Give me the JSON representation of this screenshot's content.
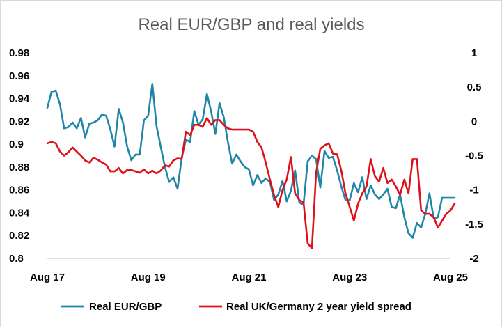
{
  "chart_data": {
    "type": "line",
    "title": "Real EUR/GBP and real yields",
    "x_tick_labels": [
      "Aug 17",
      "Aug 19",
      "Aug 21",
      "Aug 23",
      "Aug 25"
    ],
    "x_range": [
      "Aug 17",
      "Aug 25"
    ],
    "y_left": {
      "range": [
        0.8,
        0.98
      ],
      "ticks": [
        "0.98",
        "0.96",
        "0.94",
        "0.92",
        "0.9",
        "0.88",
        "0.86",
        "0.84",
        "0.82",
        "0.8"
      ]
    },
    "y_right": {
      "range": [
        -2,
        1
      ],
      "ticks": [
        "1",
        "0.5",
        "0",
        "-0.5",
        "-1",
        "-1.5",
        "-2"
      ]
    },
    "grid": false,
    "legend_position": "bottom",
    "series": [
      {
        "name": "Real EUR/GBP",
        "axis": "left",
        "color": "#1f86a8",
        "x_months_from_start": [
          0,
          1,
          2,
          3,
          4,
          5,
          6,
          7,
          8,
          9,
          10,
          11,
          12,
          13,
          14,
          15,
          16,
          17,
          18,
          19,
          20,
          21,
          22,
          23,
          24,
          25,
          26,
          27,
          28,
          29,
          30,
          31,
          32,
          33,
          34,
          35,
          36,
          37,
          38,
          39,
          40,
          41,
          42,
          43,
          44,
          45,
          46,
          47,
          48,
          49,
          50,
          51,
          52,
          53,
          54,
          55,
          56,
          57,
          58,
          59,
          60,
          61,
          62,
          63,
          64,
          65,
          66,
          67,
          68,
          69,
          70,
          71,
          72,
          73,
          74,
          75,
          76,
          77,
          78,
          79,
          80,
          81,
          82,
          83,
          84,
          85,
          86,
          87,
          88,
          89,
          90,
          91,
          92,
          93,
          94,
          95,
          96,
          97
        ],
        "values": [
          0.932,
          0.946,
          0.947,
          0.935,
          0.914,
          0.915,
          0.919,
          0.914,
          0.923,
          0.906,
          0.918,
          0.919,
          0.921,
          0.926,
          0.925,
          0.913,
          0.898,
          0.931,
          0.919,
          0.898,
          0.886,
          0.891,
          0.891,
          0.921,
          0.925,
          0.953,
          0.916,
          0.898,
          0.88,
          0.867,
          0.871,
          0.861,
          0.888,
          0.904,
          0.902,
          0.929,
          0.917,
          0.922,
          0.944,
          0.929,
          0.909,
          0.936,
          0.924,
          0.902,
          0.883,
          0.891,
          0.885,
          0.88,
          0.878,
          0.864,
          0.873,
          0.866,
          0.87,
          0.867,
          0.851,
          0.856,
          0.868,
          0.85,
          0.859,
          0.877,
          0.849,
          0.847,
          0.885,
          0.89,
          0.887,
          0.862,
          0.894,
          0.888,
          0.889,
          0.877,
          0.863,
          0.851,
          0.851,
          0.866,
          0.858,
          0.871,
          0.852,
          0.864,
          0.856,
          0.852,
          0.856,
          0.861,
          0.845,
          0.844,
          0.856,
          0.836,
          0.822,
          0.818,
          0.831,
          0.827,
          0.839,
          0.857,
          0.835,
          0.836,
          0.853,
          0.853,
          0.853,
          0.853
        ]
      },
      {
        "name": "Real UK/Germany 2 year yield spread",
        "axis": "right",
        "color": "#e0101b",
        "x_months_from_start": [
          0,
          1,
          2,
          3,
          4,
          5,
          6,
          7,
          8,
          9,
          10,
          11,
          12,
          13,
          14,
          15,
          16,
          17,
          18,
          19,
          20,
          21,
          22,
          23,
          24,
          25,
          26,
          27,
          28,
          29,
          30,
          31,
          32,
          33,
          34,
          35,
          36,
          37,
          38,
          39,
          40,
          41,
          42,
          43,
          44,
          45,
          46,
          47,
          48,
          49,
          50,
          51,
          52,
          53,
          54,
          55,
          56,
          57,
          58,
          59,
          60,
          61,
          62,
          63,
          64,
          65,
          66,
          67,
          68,
          69,
          70,
          71,
          72,
          73,
          74,
          75,
          76,
          77,
          78,
          79,
          80,
          81,
          82,
          83,
          84,
          85,
          86,
          87,
          88,
          89,
          90,
          91,
          92,
          93,
          94,
          95,
          96,
          97
        ],
        "values": [
          -0.32,
          -0.3,
          -0.32,
          -0.44,
          -0.5,
          -0.45,
          -0.38,
          -0.44,
          -0.5,
          -0.57,
          -0.6,
          -0.53,
          -0.56,
          -0.6,
          -0.63,
          -0.73,
          -0.73,
          -0.68,
          -0.76,
          -0.71,
          -0.71,
          -0.73,
          -0.75,
          -0.7,
          -0.76,
          -0.72,
          -0.76,
          -0.72,
          -0.64,
          -0.66,
          -0.57,
          -0.54,
          -0.55,
          -0.15,
          -0.2,
          -0.05,
          -0.05,
          -0.08,
          0.05,
          -0.05,
          0.02,
          0.02,
          -0.05,
          -0.1,
          -0.12,
          -0.12,
          -0.12,
          -0.12,
          -0.12,
          -0.15,
          -0.3,
          -0.38,
          -0.6,
          -0.85,
          -1.08,
          -1.25,
          -1.0,
          -0.85,
          -0.52,
          -1.05,
          -1.15,
          -1.18,
          -1.78,
          -1.85,
          -0.75,
          -0.4,
          -0.35,
          -0.32,
          -0.47,
          -0.48,
          -0.72,
          -1.05,
          -1.25,
          -1.45,
          -1.2,
          -1.05,
          -0.95,
          -0.55,
          -0.8,
          -0.88,
          -0.68,
          -0.9,
          -0.85,
          -0.95,
          -1.07,
          -0.85,
          -1.05,
          -0.55,
          -0.55,
          -1.3,
          -1.35,
          -1.35,
          -1.4,
          -1.55,
          -1.45,
          -1.35,
          -1.3,
          -1.2
        ]
      }
    ]
  }
}
